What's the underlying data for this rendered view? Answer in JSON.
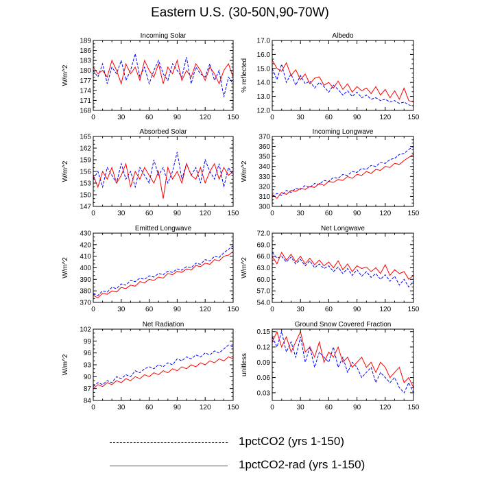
{
  "figure": {
    "title": "Eastern U.S. (30-50N,90-70W)"
  },
  "legend": [
    {
      "label": "1pctCO2 (yrs 1-150)",
      "color": "#0000ff",
      "style": "dashed"
    },
    {
      "label": "1pctCO2-rad (yrs 1-150)",
      "color": "#ff0000",
      "style": "solid"
    }
  ],
  "chart_data": [
    {
      "type": "line",
      "title": "Incoming Solar",
      "ylabel": "W/m^2",
      "xlim": [
        0,
        150
      ],
      "xticks": [
        0,
        30,
        60,
        90,
        120,
        150
      ],
      "ylim": [
        168,
        189
      ],
      "yticks": [
        "168",
        "171",
        "174",
        "177",
        "180",
        "183",
        "186",
        "189"
      ],
      "x": [
        0,
        5,
        10,
        15,
        20,
        25,
        30,
        35,
        40,
        45,
        50,
        55,
        60,
        65,
        70,
        75,
        80,
        85,
        90,
        95,
        100,
        105,
        110,
        115,
        120,
        125,
        130,
        135,
        140,
        145,
        150
      ],
      "series": [
        {
          "name": "1pctCO2 (yrs 1-150)",
          "color": "#0000ff",
          "dash": true,
          "values": [
            180,
            178,
            182,
            176,
            181,
            179,
            183,
            177,
            180,
            185,
            178,
            181,
            176,
            180,
            183,
            179,
            177,
            182,
            180,
            178,
            184,
            176,
            181,
            179,
            178,
            182,
            177,
            180,
            172,
            178,
            176
          ]
        },
        {
          "name": "1pctCO2-rad (yrs 1-150)",
          "color": "#ff0000",
          "dash": false,
          "values": [
            181,
            179,
            180,
            178,
            183,
            180,
            176,
            182,
            179,
            181,
            177,
            183,
            180,
            178,
            182,
            176,
            181,
            179,
            183,
            177,
            180,
            178,
            182,
            180,
            177,
            181,
            179,
            176,
            180,
            182,
            178
          ]
        }
      ]
    },
    {
      "type": "line",
      "title": "Albedo",
      "ylabel": "% reflected",
      "xlim": [
        0,
        150
      ],
      "xticks": [
        0,
        30,
        60,
        90,
        120,
        150
      ],
      "ylim": [
        12.0,
        17.0
      ],
      "yticks": [
        "12.0",
        "13.0",
        "14.0",
        "15.0",
        "16.0",
        "17.0"
      ],
      "x": [
        0,
        5,
        10,
        15,
        20,
        25,
        30,
        35,
        40,
        45,
        50,
        55,
        60,
        65,
        70,
        75,
        80,
        85,
        90,
        95,
        100,
        105,
        110,
        115,
        120,
        125,
        130,
        135,
        140,
        145,
        150
      ],
      "series": [
        {
          "name": "1pctCO2 (yrs 1-150)",
          "color": "#0000ff",
          "dash": true,
          "values": [
            15.0,
            14.2,
            15.3,
            14.0,
            14.6,
            13.8,
            14.5,
            13.9,
            14.1,
            13.6,
            14.0,
            13.7,
            13.3,
            13.8,
            13.5,
            13.1,
            13.4,
            13.0,
            13.3,
            12.9,
            13.1,
            12.8,
            12.9,
            12.7,
            12.8,
            12.6,
            12.7,
            12.5,
            12.6,
            12.4,
            12.3
          ]
        },
        {
          "name": "1pctCO2-rad (yrs 1-150)",
          "color": "#ff0000",
          "dash": false,
          "values": [
            15.6,
            15.0,
            14.8,
            15.4,
            14.5,
            14.9,
            14.2,
            14.6,
            13.9,
            14.3,
            14.4,
            13.8,
            14.0,
            13.6,
            14.1,
            13.5,
            13.9,
            13.3,
            13.7,
            13.4,
            13.6,
            13.2,
            13.7,
            13.1,
            13.5,
            12.9,
            13.4,
            12.8,
            13.6,
            12.7,
            12.6
          ]
        }
      ]
    },
    {
      "type": "line",
      "title": "Absorbed Solar",
      "ylabel": "W/m^2",
      "xlim": [
        0,
        150
      ],
      "xticks": [
        0,
        30,
        60,
        90,
        120,
        150
      ],
      "ylim": [
        147,
        165
      ],
      "yticks": [
        "147",
        "150",
        "153",
        "156",
        "159",
        "162",
        "165"
      ],
      "x": [
        0,
        5,
        10,
        15,
        20,
        25,
        30,
        35,
        40,
        45,
        50,
        55,
        60,
        65,
        70,
        75,
        80,
        85,
        90,
        95,
        100,
        105,
        110,
        115,
        120,
        125,
        130,
        135,
        140,
        145,
        150
      ],
      "series": [
        {
          "name": "1pctCO2 (yrs 1-150)",
          "color": "#0000ff",
          "dash": true,
          "values": [
            154,
            156,
            152,
            157,
            155,
            153,
            158,
            154,
            156,
            152,
            157,
            155,
            153,
            159,
            155,
            157,
            153,
            156,
            161,
            154,
            158,
            155,
            157,
            153,
            159,
            156,
            154,
            158,
            152,
            157,
            155
          ]
        },
        {
          "name": "1pctCO2-rad (yrs 1-150)",
          "color": "#ff0000",
          "dash": false,
          "values": [
            155,
            152,
            156,
            154,
            157,
            153,
            155,
            158,
            152,
            156,
            154,
            157,
            155,
            153,
            156,
            149,
            157,
            154,
            156,
            153,
            158,
            155,
            154,
            157,
            153,
            156,
            158,
            154,
            157,
            155,
            156
          ]
        }
      ]
    },
    {
      "type": "line",
      "title": "Incoming Longwave",
      "ylabel": "W/m^2",
      "xlim": [
        0,
        150
      ],
      "xticks": [
        0,
        30,
        60,
        90,
        120,
        150
      ],
      "ylim": [
        300,
        370
      ],
      "yticks": [
        "300",
        "310",
        "320",
        "330",
        "340",
        "350",
        "360",
        "370"
      ],
      "x": [
        0,
        5,
        10,
        15,
        20,
        25,
        30,
        35,
        40,
        45,
        50,
        55,
        60,
        65,
        70,
        75,
        80,
        85,
        90,
        95,
        100,
        105,
        110,
        115,
        120,
        125,
        130,
        135,
        140,
        145,
        150
      ],
      "series": [
        {
          "name": "1pctCO2 (yrs 1-150)",
          "color": "#0000ff",
          "dash": true,
          "values": [
            310,
            313,
            311,
            316,
            314,
            318,
            317,
            321,
            319,
            323,
            322,
            326,
            325,
            329,
            328,
            332,
            331,
            335,
            334,
            338,
            337,
            341,
            340,
            344,
            343,
            347,
            348,
            352,
            353,
            357,
            360
          ]
        },
        {
          "name": "1pctCO2-rad (yrs 1-150)",
          "color": "#ff0000",
          "dash": false,
          "values": [
            312,
            308,
            314,
            312,
            316,
            315,
            318,
            317,
            320,
            319,
            323,
            321,
            325,
            324,
            327,
            326,
            330,
            328,
            332,
            331,
            335,
            333,
            337,
            336,
            340,
            339,
            343,
            342,
            346,
            349,
            352
          ]
        }
      ]
    },
    {
      "type": "line",
      "title": "Emitted Longwave",
      "ylabel": "W/m^2",
      "xlim": [
        0,
        150
      ],
      "xticks": [
        0,
        30,
        60,
        90,
        120,
        150
      ],
      "ylim": [
        370,
        430
      ],
      "yticks": [
        "370",
        "380",
        "390",
        "400",
        "410",
        "420",
        "430"
      ],
      "x": [
        0,
        5,
        10,
        15,
        20,
        25,
        30,
        35,
        40,
        45,
        50,
        55,
        60,
        65,
        70,
        75,
        80,
        85,
        90,
        95,
        100,
        105,
        110,
        115,
        120,
        125,
        130,
        135,
        140,
        145,
        150
      ],
      "series": [
        {
          "name": "1pctCO2 (yrs 1-150)",
          "color": "#0000ff",
          "dash": true,
          "values": [
            378,
            376,
            380,
            379,
            383,
            382,
            386,
            385,
            389,
            388,
            391,
            390,
            393,
            392,
            395,
            394,
            397,
            396,
            399,
            398,
            401,
            400,
            404,
            403,
            407,
            406,
            410,
            409,
            413,
            416,
            419
          ]
        },
        {
          "name": "1pctCO2-rad (yrs 1-150)",
          "color": "#ff0000",
          "dash": false,
          "values": [
            376,
            374,
            378,
            377,
            380,
            379,
            383,
            382,
            385,
            384,
            388,
            387,
            390,
            389,
            392,
            391,
            395,
            394,
            397,
            396,
            399,
            398,
            402,
            401,
            404,
            403,
            407,
            406,
            410,
            411,
            414
          ]
        }
      ]
    },
    {
      "type": "line",
      "title": "Net Longwave",
      "ylabel": "W/m^2",
      "xlim": [
        0,
        150
      ],
      "xticks": [
        0,
        30,
        60,
        90,
        120,
        150
      ],
      "ylim": [
        54.0,
        72.0
      ],
      "yticks": [
        "54.0",
        "57.0",
        "60.0",
        "63.0",
        "66.0",
        "69.0",
        "72.0"
      ],
      "x": [
        0,
        5,
        10,
        15,
        20,
        25,
        30,
        35,
        40,
        45,
        50,
        55,
        60,
        65,
        70,
        75,
        80,
        85,
        90,
        95,
        100,
        105,
        110,
        115,
        120,
        125,
        130,
        135,
        140,
        145,
        150
      ],
      "series": [
        {
          "name": "1pctCO2 (yrs 1-150)",
          "color": "#0000ff",
          "dash": true,
          "values": [
            67.0,
            65.5,
            66.0,
            64.5,
            65.8,
            64.0,
            65.2,
            63.5,
            64.8,
            63.0,
            64.0,
            62.8,
            63.5,
            62.0,
            63.2,
            61.5,
            62.8,
            61.0,
            62.5,
            60.8,
            62.0,
            60.5,
            61.5,
            60.0,
            61.2,
            59.5,
            60.8,
            58.5,
            60.0,
            58.0,
            59.5
          ]
        },
        {
          "name": "1pctCO2-rad (yrs 1-150)",
          "color": "#ff0000",
          "dash": false,
          "values": [
            66.0,
            64.0,
            67.0,
            65.0,
            66.5,
            64.5,
            66.0,
            64.0,
            65.5,
            63.8,
            65.0,
            63.5,
            64.5,
            63.0,
            64.8,
            62.5,
            64.0,
            62.0,
            63.5,
            62.8,
            63.2,
            62.0,
            63.0,
            61.5,
            63.8,
            61.0,
            62.5,
            61.5,
            62.0,
            60.0,
            61.0
          ]
        }
      ]
    },
    {
      "type": "line",
      "title": "Net Radiation",
      "ylabel": "W/m^2",
      "xlim": [
        0,
        150
      ],
      "xticks": [
        0,
        30,
        60,
        90,
        120,
        150
      ],
      "ylim": [
        84,
        102
      ],
      "yticks": [
        "84",
        "87",
        "90",
        "93",
        "96",
        "99",
        "102"
      ],
      "x": [
        0,
        5,
        10,
        15,
        20,
        25,
        30,
        35,
        40,
        45,
        50,
        55,
        60,
        65,
        70,
        75,
        80,
        85,
        90,
        95,
        100,
        105,
        110,
        115,
        120,
        125,
        130,
        135,
        140,
        145,
        150
      ],
      "series": [
        {
          "name": "1pctCO2 (yrs 1-150)",
          "color": "#0000ff",
          "dash": true,
          "values": [
            87.5,
            88.5,
            88.0,
            89.0,
            88.5,
            90.0,
            89.5,
            90.5,
            90.0,
            91.5,
            91.0,
            92.0,
            92.5,
            92.0,
            93.0,
            92.5,
            93.5,
            93.0,
            94.5,
            94.0,
            95.0,
            94.5,
            95.5,
            95.0,
            96.0,
            95.5,
            96.5,
            96.0,
            97.0,
            98.0,
            97.5
          ]
        },
        {
          "name": "1pctCO2-rad (yrs 1-150)",
          "color": "#ff0000",
          "dash": false,
          "values": [
            87.0,
            88.0,
            87.5,
            88.5,
            88.0,
            89.0,
            88.5,
            89.5,
            89.0,
            90.0,
            89.5,
            90.5,
            90.0,
            91.0,
            90.5,
            91.5,
            91.0,
            92.0,
            91.5,
            92.5,
            92.0,
            93.0,
            92.5,
            93.5,
            93.0,
            94.0,
            93.5,
            94.5,
            94.0,
            95.0,
            94.5
          ]
        }
      ]
    },
    {
      "type": "line",
      "title": "Ground Snow Covered Fraction",
      "ylabel": "unitless",
      "xlim": [
        0,
        150
      ],
      "xticks": [
        0,
        30,
        60,
        90,
        120,
        150
      ],
      "ylim": [
        0.015,
        0.155
      ],
      "yticks": [
        "0.03",
        "0.06",
        "0.09",
        "0.12",
        "0.15"
      ],
      "ytick_values": [
        0.03,
        0.06,
        0.09,
        0.12,
        0.15
      ],
      "x": [
        0,
        5,
        10,
        15,
        20,
        25,
        30,
        35,
        40,
        45,
        50,
        55,
        60,
        65,
        70,
        75,
        80,
        85,
        90,
        95,
        100,
        105,
        110,
        115,
        120,
        125,
        130,
        135,
        140,
        145,
        150
      ],
      "series": [
        {
          "name": "1pctCO2 (yrs 1-150)",
          "color": "#0000ff",
          "dash": true,
          "values": [
            0.14,
            0.12,
            0.15,
            0.11,
            0.13,
            0.1,
            0.14,
            0.09,
            0.12,
            0.08,
            0.11,
            0.1,
            0.09,
            0.12,
            0.08,
            0.1,
            0.07,
            0.09,
            0.08,
            0.06,
            0.07,
            0.08,
            0.05,
            0.07,
            0.06,
            0.05,
            0.06,
            0.04,
            0.03,
            0.05,
            0.03
          ]
        },
        {
          "name": "1pctCO2-rad (yrs 1-150)",
          "color": "#ff0000",
          "dash": false,
          "values": [
            0.13,
            0.15,
            0.12,
            0.14,
            0.11,
            0.13,
            0.15,
            0.11,
            0.12,
            0.1,
            0.13,
            0.09,
            0.11,
            0.1,
            0.12,
            0.09,
            0.1,
            0.08,
            0.09,
            0.1,
            0.08,
            0.09,
            0.07,
            0.09,
            0.08,
            0.06,
            0.07,
            0.08,
            0.05,
            0.06,
            0.04
          ]
        }
      ]
    }
  ]
}
